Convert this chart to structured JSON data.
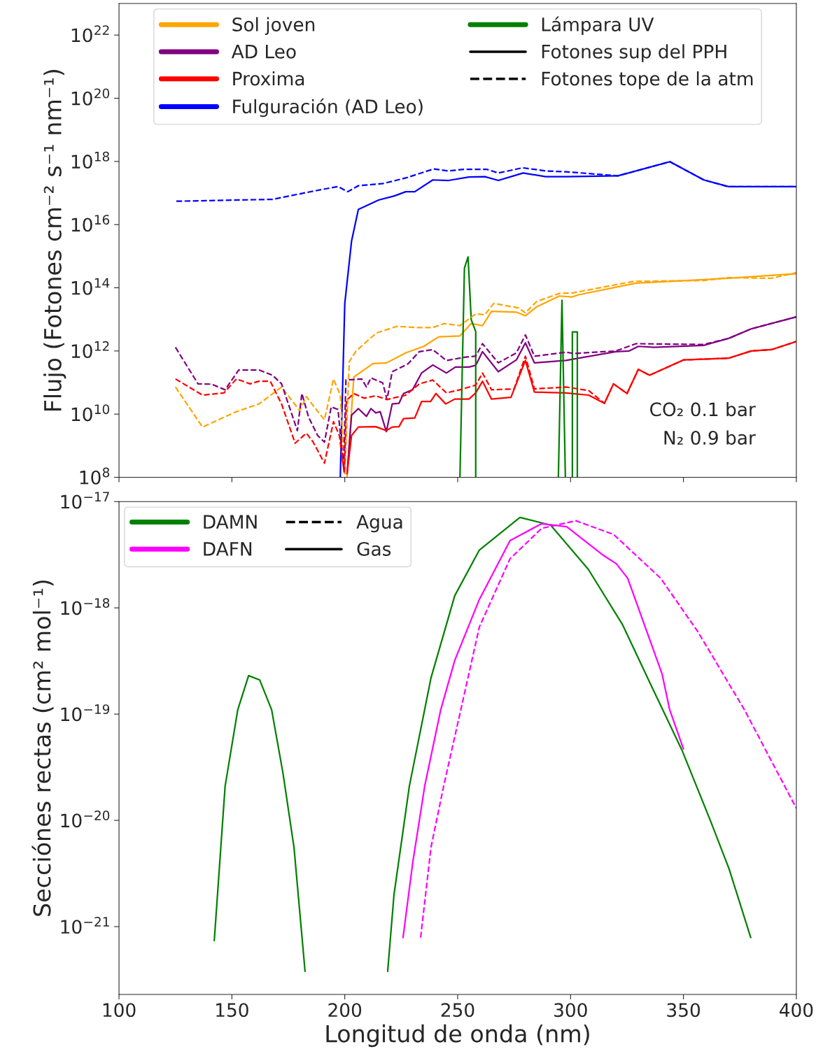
{
  "chart_data": [
    {
      "type": "line",
      "log": "y",
      "ylabel": "Flujo (Fotones cm⁻² s⁻¹ nm⁻¹)",
      "xlim": [
        100,
        400
      ],
      "xticks": [
        100,
        150,
        200,
        250,
        300,
        350,
        400
      ],
      "tick_labels": "y",
      "ylim": [
        100000000.0,
        1e+23
      ],
      "yticks": [
        {
          "value": 100000000.0,
          "label": "10$^{8}$"
        },
        {
          "value": 10000000000.0,
          "label": "10$^{10}$"
        },
        {
          "value": 1000000000000.0,
          "label": "10$^{12}$"
        },
        {
          "value": 100000000000000.0,
          "label": "10$^{14}$"
        },
        {
          "value": 1e+16,
          "label": "10$^{16}$"
        },
        {
          "value": 1e+18,
          "label": "10$^{18}$"
        },
        {
          "value": 1e+20,
          "label": "10$^{20}$"
        },
        {
          "value": 1e+22,
          "label": "10$^{22}$"
        }
      ],
      "legend": "top",
      "grid": false,
      "annotations": [
        "CO₂ 0.1 bar",
        "N₂ 0.9 bar"
      ],
      "series": [
        {
          "name": "Sol joven",
          "color": "#ffa500",
          "line_style": "solid",
          "x": [
            201,
            204,
            212.5,
            218.5,
            227,
            235,
            241.6,
            251,
            256,
            261,
            265,
            276,
            280,
            285,
            295,
            300.5,
            303.6,
            329,
            370,
            400
          ],
          "values": [
            100000000.0,
            150000000000.0,
            400000000000.0,
            420000000000.0,
            870000000000.0,
            1400000000000.0,
            2800000000000.0,
            3000000000000.0,
            7400000000000.0,
            6300000000000.0,
            18000000000000.0,
            17000000000000.0,
            13000000000000.0,
            25000000000000.0,
            55000000000000.0,
            51000000000000.0,
            60000000000000.0,
            140000000000000.0,
            200000000000000.0,
            280000000000000.0
          ]
        },
        {
          "name": "AD Leo",
          "color": "#800080",
          "line_style": "solid",
          "x": [
            201,
            203,
            206,
            209.6,
            211.6,
            213.7,
            215.7,
            218.4,
            221,
            224,
            226,
            230,
            234,
            239,
            245,
            249,
            255,
            258,
            261,
            268,
            276,
            280,
            284,
            298,
            303.6,
            320,
            326,
            330,
            337,
            359,
            370,
            380,
            400
          ],
          "values": [
            130000000.0,
            9300000000.0,
            15000000000.0,
            8500000000.0,
            15000000000.0,
            11000000000.0,
            12000000000.0,
            2800000000.0,
            21000000000.0,
            22000000000.0,
            45000000000.0,
            59000000000.0,
            200000000000.0,
            360000000000.0,
            200000000000.0,
            310000000000.0,
            310000000000.0,
            350000000000.0,
            950000000000.0,
            220000000000.0,
            520000000000.0,
            1800000000000.0,
            420000000000.0,
            500000000000.0,
            590000000000.0,
            950000000000.0,
            1000000000000.0,
            1400000000000.0,
            1300000000000.0,
            1500000000000.0,
            2500000000000.0,
            5000000000000.0,
            12000000000000.0
          ]
        },
        {
          "name": "Proxima",
          "color": "#ff0000",
          "line_style": "solid",
          "x": [
            201,
            203,
            206,
            213.7,
            218.4,
            221,
            224,
            226,
            231,
            234,
            238,
            240.4,
            244.7,
            248.7,
            255,
            258,
            261,
            265,
            273.6,
            280,
            284,
            298,
            308,
            315,
            319,
            325,
            330,
            335,
            350,
            370,
            380,
            389,
            400
          ],
          "values": [
            130000000.0,
            2100000000.0,
            3900000000.0,
            4000000000.0,
            3000000000.0,
            3900000000.0,
            4000000000.0,
            7200000000.0,
            7600000000.0,
            25000000000.0,
            25000000000.0,
            45000000000.0,
            21000000000.0,
            30000000000.0,
            30000000000.0,
            47000000000.0,
            110000000000.0,
            30000000000.0,
            34000000000.0,
            500000000000.0,
            50000000000.0,
            47000000000.0,
            40000000000.0,
            22000000000.0,
            91000000000.0,
            45000000000.0,
            260000000000.0,
            170000000000.0,
            520000000000.0,
            590000000000.0,
            1000000000000.0,
            1100000000000.0,
            2000000000000.0
          ]
        },
        {
          "name": "Fulguración (AD Leo)",
          "color": "#0000ff",
          "line_style": "solid",
          "x": [
            198,
            200,
            203,
            206,
            215,
            222,
            227,
            231,
            239,
            246,
            255,
            262,
            268,
            279,
            289,
            298,
            321,
            344,
            359,
            370,
            400
          ],
          "values": [
            100000000.0,
            32000000000000.0,
            3000000000000000.0,
            3e+16,
            6e+16,
            8.1e+16,
            1.1e+17,
            1.1e+17,
            2.6e+17,
            2.5e+17,
            3.2e+17,
            3.3e+17,
            2.5e+17,
            4.3e+17,
            3.3e+17,
            3.3e+17,
            3.5e+17,
            9.8e+17,
            2.6e+17,
            1.6e+17,
            1.6e+17
          ]
        },
        {
          "name": "Lámpara UV",
          "color": "#008000",
          "line_style": "solid",
          "x": [
            251,
            253,
            254.6,
            256,
            258,
            258,
            276,
            294.6,
            296.2,
            297.7,
            299,
            300.8,
            300.8,
            303,
            303
          ],
          "values": [
            100000000.0,
            420000000000000.0,
            950000000000000.0,
            9800000000000.0,
            4100000000000.0,
            100000000.0,
            null,
            100000000.0,
            40000000000000.0,
            100000000.0,
            null,
            100000000.0,
            4000000000000.0,
            4000000000000.0,
            100000000.0
          ]
        },
        {
          "name": "Fotones sup del PPH",
          "color": "#000000",
          "line_style": "solid"
        },
        {
          "name": "Fotones tope de la atm",
          "color": "#000000",
          "line_style": "dashed"
        },
        {
          "color": "#ffa500",
          "line_style": "dashed",
          "x": [
            125,
            137,
            152,
            162,
            172,
            180,
            183,
            187,
            191,
            195,
            198,
            200,
            202,
            205,
            214,
            223,
            232,
            239,
            244,
            251,
            258,
            262,
            266,
            277,
            280,
            285,
            295,
            301,
            328,
            359,
            370,
            389,
            400
          ],
          "values": [
            72000000000.0,
            3900000000.0,
            12000000000.0,
            21000000000.0,
            72000000000.0,
            13000000000.0,
            36000000000.0,
            15000000000.0,
            6600000000.0,
            130000000000.0,
            40000000000.0,
            130000000.0,
            460000000000.0,
            1000000000000.0,
            3700000000000.0,
            6000000000000.0,
            5500000000000.0,
            5500000000000.0,
            7400000000000.0,
            6300000000000.0,
            15000000000000.0,
            14000000000000.0,
            32000000000000.0,
            23000000000000.0,
            16000000000000.0,
            37000000000000.0,
            66000000000000.0,
            69000000000000.0,
            160000000000000.0,
            170000000000000.0,
            210000000000000.0,
            200000000000000.0,
            300000000000000.0
          ]
        },
        {
          "color": "#800080",
          "line_style": "dashed",
          "x": [
            125,
            135,
            141,
            147,
            153,
            162,
            168,
            172,
            179,
            181,
            184,
            188,
            191,
            194,
            197,
            199.5,
            200.5,
            207.5,
            209.6,
            211.6,
            216.8,
            218.7,
            221,
            228,
            233,
            239,
            245,
            253,
            258,
            261,
            268,
            276,
            280,
            284,
            298,
            301.5,
            320,
            329,
            359,
            370,
            380,
            400
          ],
          "values": [
            1300000000000.0,
            91000000000.0,
            89000000000.0,
            59000000000.0,
            250000000000.0,
            250000000000.0,
            170000000000.0,
            91000000000.0,
            3000000000.0,
            45000000000.0,
            7900000000.0,
            2100000000.0,
            1300000000.0,
            17000000000.0,
            14000000000.0,
            190000000.0,
            120000000000.0,
            130000000000.0,
            72000000000.0,
            140000000000.0,
            98000000000.0,
            29000000000.0,
            220000000000.0,
            390000000000.0,
            950000000000.0,
            1100000000000.0,
            500000000000.0,
            630000000000.0,
            690000000000.0,
            1700000000000.0,
            420000000000.0,
            870000000000.0,
            3200000000000.0,
            680000000000.0,
            910000000000.0,
            830000000000.0,
            1000000000000.0,
            1700000000000.0,
            1600000000000.0,
            2500000000000.0,
            5000000000000.0,
            12000000000000.0
          ]
        },
        {
          "color": "#ff0000",
          "line_style": "dashed",
          "x": [
            125,
            137,
            146.5,
            152,
            158,
            162,
            167,
            172,
            178,
            183,
            186,
            191,
            195,
            197.6,
            199.8,
            200.7,
            204,
            208.5,
            213.7,
            218.7,
            227,
            233,
            239,
            245,
            251,
            258,
            261,
            265,
            275,
            280,
            284,
            298,
            308,
            315,
            319,
            325,
            330,
            335,
            350,
            370,
            380,
            389,
            400
          ],
          "values": [
            130000000000.0,
            40000000000.0,
            47000000000.0,
            130000000000.0,
            91000000000.0,
            110000000000.0,
            110000000000.0,
            21000000000.0,
            1200000000.0,
            2500000000.0,
            1300000000.0,
            280000000.0,
            5800000000.0,
            2100000000.0,
            130000000.0,
            27000000000.0,
            45000000000.0,
            32000000000.0,
            38000000000.0,
            29000000000.0,
            40000000000.0,
            91000000000.0,
            120000000000.0,
            47000000000.0,
            59000000000.0,
            83000000000.0,
            200000000000.0,
            59000000000.0,
            63000000000.0,
            680000000000.0,
            63000000000.0,
            72000000000.0,
            56000000000.0,
            22000000000.0,
            91000000000.0,
            45000000000.0,
            260000000000.0,
            170000000000.0,
            520000000000.0,
            590000000000.0,
            1000000000000.0,
            1100000000000.0,
            2000000000000.0
          ]
        },
        {
          "color": "#0000ff",
          "line_style": "dashed",
          "x": [
            125.4,
            168,
            178.4,
            190,
            197,
            201.3,
            206,
            217,
            227,
            239.4,
            245.6,
            252.8,
            263,
            268,
            278.8,
            289,
            298,
            321,
            344,
            359,
            369.6,
            400
          ],
          "values": [
            5.5e+16,
            6.3e+16,
            8.9e+16,
            1.3e+17,
            1.6e+17,
            1.1e+17,
            1.7e+17,
            2e+17,
            3e+17,
            5.8e+17,
            5e+17,
            5.6e+17,
            5.6e+17,
            4.3e+17,
            6.3e+17,
            5e+17,
            4.7e+17,
            3.5e+17,
            9.8e+17,
            2.6e+17,
            1.6e+17,
            1.6e+17
          ]
        }
      ]
    },
    {
      "type": "line",
      "log": "y",
      "xlabel": "Longitud de onda (nm)",
      "ylabel": "Secciónes rectas (cm² mol⁻¹)",
      "xlim": [
        100,
        400
      ],
      "xticks": [
        100,
        150,
        200,
        250,
        300,
        350,
        400
      ],
      "ylim": [
        2.3e-22,
        1e-17
      ],
      "yticks": [
        {
          "value": 1e-21,
          "label": "10$^{−21}$"
        },
        {
          "value": 1e-20,
          "label": "10$^{−20}$"
        },
        {
          "value": 1e-19,
          "label": "10$^{−19}$"
        },
        {
          "value": 1e-18,
          "label": "10$^{−18}$"
        },
        {
          "value": 1e-17,
          "label": "10$^{−17}$"
        }
      ],
      "legend": "top left",
      "grid": false,
      "series": [
        {
          "name": "DAMN",
          "color": "#008000",
          "line_style": "solid",
          "x": [
            142.2,
            147,
            152.6,
            157.4,
            162.3,
            167.6,
            172.6,
            177.5,
            182.4,
            200,
            219,
            221.8,
            228.6,
            238.2,
            248.7,
            259.6,
            277.6,
            291.2,
            307.9,
            323.1,
            335.5,
            349.5,
            361.9,
            370.2,
            379.8
          ],
          "values": [
            7.4e-22,
            2.1e-20,
            1.1e-19,
            2.3e-19,
            2.1e-19,
            1.1e-19,
            2.8e-20,
            5.6e-21,
            3.8e-22,
            null,
            3.8e-22,
            2e-21,
            2.1e-20,
            2.2e-19,
            1.3e-18,
            3.5e-18,
            7.1e-18,
            6e-18,
            2.3e-18,
            6.9e-19,
            1.9e-19,
            4.5e-20,
            1e-20,
            3.5e-21,
            7.9e-22
          ]
        },
        {
          "name": "DAFN",
          "color": "#ff00ff",
          "line_style": "solid",
          "x": [
            225.8,
            230.1,
            235.4,
            242.5,
            248.7,
            259.6,
            273.2,
            287.2,
            298.3,
            314.7,
            320.3,
            325.3,
            340.5,
            343.9,
            350
          ],
          "values": [
            7.9e-22,
            4e-21,
            2.1e-20,
            1.1e-19,
            3.2e-19,
            1.2e-18,
            4.3e-18,
            6.2e-18,
            5.8e-18,
            3.1e-18,
            2.6e-18,
            1.9e-18,
            2.4e-19,
            1.1e-19,
            4.7e-20
          ]
        },
        {
          "name": "Agua",
          "color": "#000000",
          "line_style": "dashed"
        },
        {
          "name": "Gas",
          "color": "#000000",
          "line_style": "solid"
        },
        {
          "color": "#ff00ff",
          "line_style": "dashed",
          "x": [
            233.6,
            238.2,
            243.8,
            259.6,
            273.2,
            287.2,
            302.4,
            319.1,
            339.9,
            356.3,
            377,
            400
          ],
          "values": [
            7.9e-22,
            5.6e-21,
            2.1e-20,
            6.6e-19,
            2.9e-18,
            5.6e-18,
            6.6e-18,
            4.9e-18,
            1.9e-18,
            6e-19,
            1.1e-19,
            1.3e-20
          ]
        }
      ]
    }
  ]
}
